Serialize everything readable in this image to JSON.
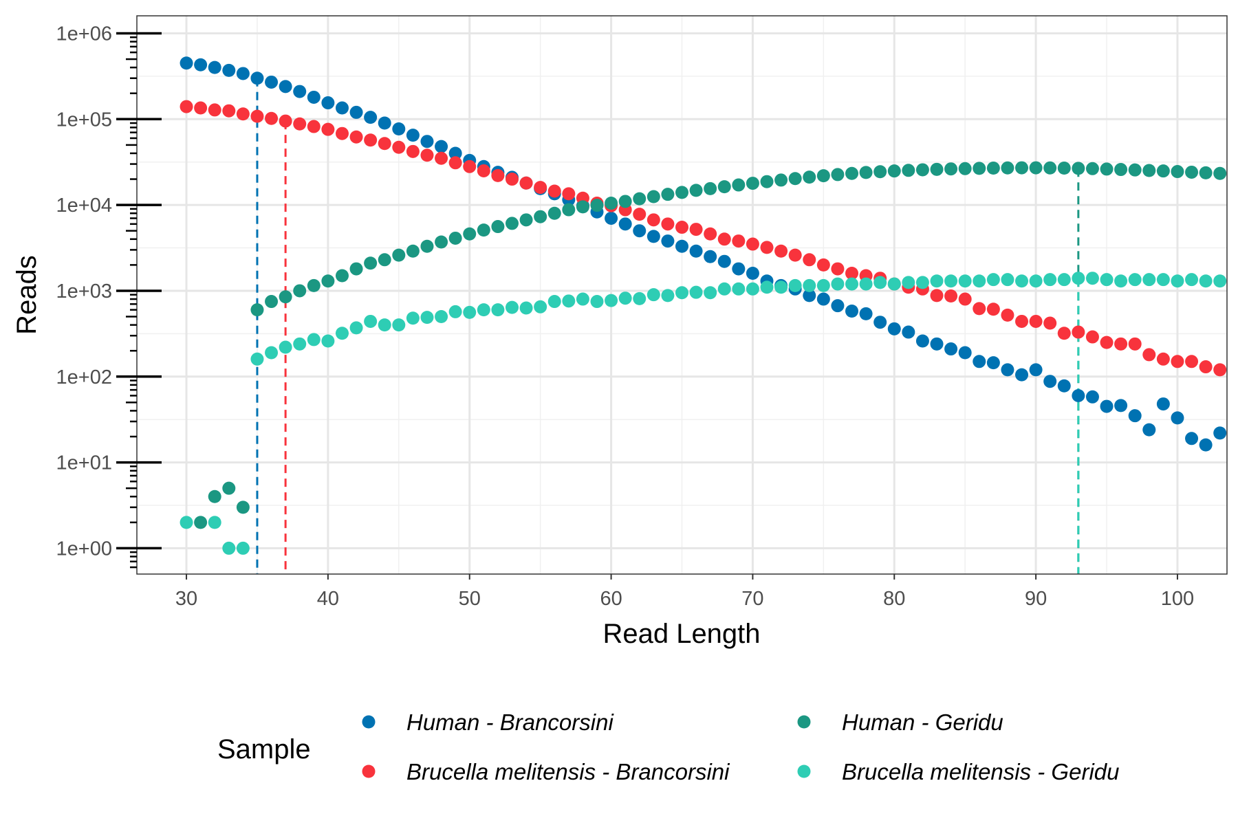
{
  "chart_data": {
    "type": "scatter",
    "title": "",
    "xlabel": "Read Length",
    "ylabel": "Reads",
    "xscale": "linear",
    "yscale": "log10",
    "xlim": [
      26.5,
      103.5
    ],
    "ylim": [
      0.5,
      1600000
    ],
    "x_ticks": [
      30,
      40,
      50,
      60,
      70,
      80,
      90,
      100
    ],
    "x_tick_labels": [
      "30",
      "40",
      "50",
      "60",
      "70",
      "80",
      "90",
      "100"
    ],
    "y_ticks": [
      1,
      10,
      100,
      1000,
      10000,
      100000,
      1000000
    ],
    "y_tick_labels": [
      "1e+00",
      "1e+01",
      "1e+02",
      "1e+03",
      "1e+04",
      "1e+05",
      "1e+06"
    ],
    "grid": true,
    "log_minor_ticks": true,
    "legend_title": "Sample",
    "legend_position": "bottom",
    "series": [
      {
        "name": "Human - Brancorsini",
        "color": "#0072B2",
        "x": [
          30,
          31,
          32,
          33,
          34,
          35,
          36,
          37,
          38,
          39,
          40,
          41,
          42,
          43,
          44,
          45,
          46,
          47,
          48,
          49,
          50,
          51,
          52,
          53,
          54,
          55,
          56,
          57,
          58,
          59,
          60,
          61,
          62,
          63,
          64,
          65,
          66,
          67,
          68,
          69,
          70,
          71,
          72,
          73,
          74,
          75,
          76,
          77,
          78,
          79,
          80,
          81,
          82,
          83,
          84,
          85,
          86,
          87,
          88,
          89,
          90,
          91,
          92,
          93,
          94,
          95,
          96,
          97,
          98,
          99,
          100,
          101,
          102,
          103
        ],
        "y": [
          450000,
          430000,
          400000,
          370000,
          340000,
          300000,
          270000,
          240000,
          210000,
          180000,
          155000,
          135000,
          120000,
          105000,
          90000,
          77000,
          65000,
          55000,
          48000,
          40000,
          33000,
          28000,
          24000,
          21000,
          18000,
          15500,
          13500,
          11500,
          9800,
          8300,
          7000,
          6000,
          5000,
          4300,
          3800,
          3300,
          2900,
          2500,
          2200,
          1800,
          1600,
          1300,
          1150,
          1050,
          880,
          800,
          670,
          580,
          540,
          430,
          360,
          330,
          260,
          240,
          210,
          190,
          150,
          145,
          120,
          105,
          120,
          88,
          78,
          60,
          58,
          45,
          46,
          35,
          24,
          48,
          33,
          19,
          16,
          22
        ]
      },
      {
        "name": "Brucella melitensis - Brancorsini",
        "color": "#F8333C",
        "x": [
          30,
          31,
          32,
          33,
          34,
          35,
          36,
          37,
          38,
          39,
          40,
          41,
          42,
          43,
          44,
          45,
          46,
          47,
          48,
          49,
          50,
          51,
          52,
          53,
          54,
          55,
          56,
          57,
          58,
          59,
          60,
          61,
          62,
          63,
          64,
          65,
          66,
          67,
          68,
          69,
          70,
          71,
          72,
          73,
          74,
          75,
          76,
          77,
          78,
          79,
          80,
          81,
          82,
          83,
          84,
          85,
          86,
          87,
          88,
          89,
          90,
          91,
          92,
          93,
          94,
          95,
          96,
          97,
          98,
          99,
          100,
          101,
          102,
          103
        ],
        "y": [
          140000,
          135000,
          128000,
          125000,
          115000,
          108000,
          102000,
          95000,
          88000,
          82000,
          76000,
          68000,
          62000,
          57000,
          52000,
          47000,
          42000,
          38000,
          35000,
          31000,
          28000,
          25000,
          22000,
          20000,
          18000,
          16000,
          14500,
          13500,
          12000,
          10500,
          9800,
          8800,
          7800,
          6700,
          6000,
          5500,
          5200,
          4600,
          4000,
          3800,
          3500,
          3200,
          2900,
          2600,
          2300,
          2000,
          1800,
          1600,
          1500,
          1400,
          1200,
          1100,
          1050,
          880,
          870,
          800,
          620,
          610,
          520,
          440,
          440,
          420,
          320,
          330,
          290,
          250,
          240,
          240,
          180,
          160,
          150,
          150,
          130,
          120
        ]
      },
      {
        "name": "Human - Geridu",
        "color": "#1B9782",
        "x": [
          31,
          32,
          33,
          34,
          35,
          36,
          37,
          38,
          39,
          40,
          41,
          42,
          43,
          44,
          45,
          46,
          47,
          48,
          49,
          50,
          51,
          52,
          53,
          54,
          55,
          56,
          57,
          58,
          59,
          60,
          61,
          62,
          63,
          64,
          65,
          66,
          67,
          68,
          69,
          70,
          71,
          72,
          73,
          74,
          75,
          76,
          77,
          78,
          79,
          80,
          81,
          82,
          83,
          84,
          85,
          86,
          87,
          88,
          89,
          90,
          91,
          92,
          93,
          94,
          95,
          96,
          97,
          98,
          99,
          100,
          101,
          102,
          103
        ],
        "y": [
          2,
          4,
          5,
          3,
          600,
          750,
          850,
          1000,
          1150,
          1300,
          1500,
          1800,
          2100,
          2300,
          2600,
          2900,
          3300,
          3700,
          4100,
          4600,
          5100,
          5600,
          6100,
          6700,
          7300,
          8000,
          8800,
          9500,
          9900,
          10500,
          11000,
          11800,
          12500,
          13300,
          14000,
          14800,
          15500,
          16300,
          17100,
          17900,
          18700,
          19500,
          20300,
          21100,
          21900,
          22600,
          23300,
          23900,
          24400,
          24900,
          25300,
          25700,
          26000,
          26300,
          26500,
          26700,
          26900,
          27000,
          27100,
          27100,
          27000,
          26900,
          26700,
          26500,
          26200,
          25900,
          25600,
          25200,
          24900,
          24500,
          24100,
          23700,
          23300
        ]
      },
      {
        "name": "Brucella melitensis - Geridu",
        "color": "#2ECDB4",
        "x": [
          30,
          32,
          33,
          34,
          35,
          36,
          37,
          38,
          39,
          40,
          41,
          42,
          43,
          44,
          45,
          46,
          47,
          48,
          49,
          50,
          51,
          52,
          53,
          54,
          55,
          56,
          57,
          58,
          59,
          60,
          61,
          62,
          63,
          64,
          65,
          66,
          67,
          68,
          69,
          70,
          71,
          72,
          73,
          74,
          75,
          76,
          77,
          78,
          79,
          80,
          81,
          82,
          83,
          84,
          85,
          86,
          87,
          88,
          89,
          90,
          91,
          92,
          93,
          94,
          95,
          96,
          97,
          98,
          99,
          100,
          101,
          102,
          103
        ],
        "y": [
          2,
          2,
          1,
          1,
          160,
          190,
          220,
          240,
          270,
          260,
          320,
          370,
          440,
          400,
          400,
          480,
          490,
          500,
          570,
          560,
          600,
          600,
          640,
          630,
          650,
          750,
          760,
          800,
          750,
          770,
          820,
          810,
          900,
          880,
          950,
          960,
          950,
          1050,
          1050,
          1050,
          1100,
          1100,
          1150,
          1150,
          1150,
          1200,
          1200,
          1200,
          1250,
          1200,
          1250,
          1250,
          1300,
          1300,
          1300,
          1300,
          1350,
          1350,
          1300,
          1300,
          1350,
          1350,
          1400,
          1400,
          1350,
          1300,
          1350,
          1350,
          1350,
          1300,
          1350,
          1300,
          1300
        ]
      }
    ],
    "reference_lines": [
      {
        "x": 35,
        "color": "#0072B2",
        "style": "dashed",
        "y_top": 300000
      },
      {
        "x": 37,
        "color": "#F8333C",
        "style": "dashed",
        "y_top": 95000
      },
      {
        "x": 93,
        "color": "#1B9782",
        "style": "dashed",
        "y_top": 26500
      },
      {
        "x": 93,
        "color": "#2ECDB4",
        "style": "dashed",
        "y_top": 1400
      }
    ],
    "legend": {
      "columns": [
        [
          "Human - Brancorsini",
          "Brucella melitensis - Brancorsini"
        ],
        [
          "Human - Geridu",
          "Brucella melitensis - Geridu"
        ]
      ]
    }
  }
}
